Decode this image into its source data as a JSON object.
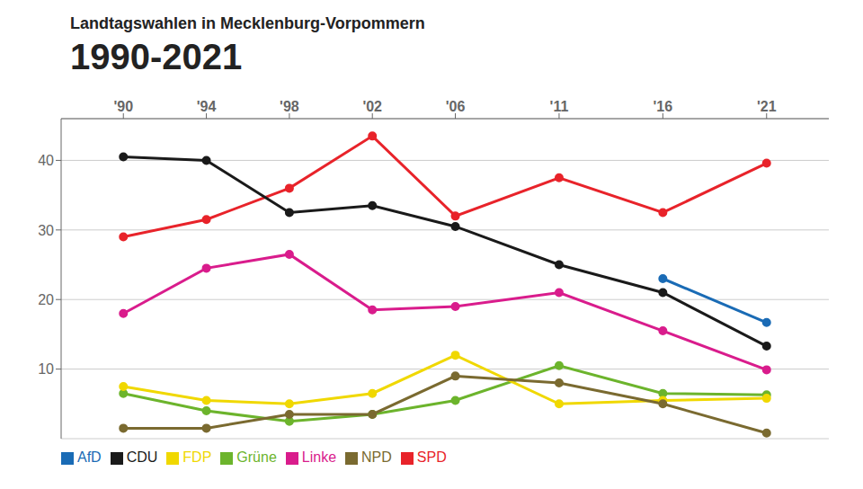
{
  "chart_data": {
    "type": "line",
    "title": "Landtagswahlen in Mecklenburg-Vorpommern",
    "subtitle": "1990-2021",
    "x": [
      1990,
      1994,
      1998,
      2002,
      2006,
      2011,
      2016,
      2021
    ],
    "xlim": [
      1987,
      2024
    ],
    "xticks": [
      {
        "value": 1990,
        "label": "'90"
      },
      {
        "value": 1994,
        "label": "'94"
      },
      {
        "value": 1998,
        "label": "'98"
      },
      {
        "value": 2002,
        "label": "'02"
      },
      {
        "value": 2006,
        "label": "'06"
      },
      {
        "value": 2011,
        "label": "'11"
      },
      {
        "value": 2016,
        "label": "'16"
      },
      {
        "value": 2021,
        "label": "'21"
      }
    ],
    "ylim": [
      0,
      46
    ],
    "yticks": [
      10,
      20,
      30,
      40
    ],
    "grid": true,
    "legend": "lower left",
    "marker": "circle",
    "series": [
      {
        "name": "SPD",
        "color": "#e8232a",
        "values": [
          29.0,
          31.5,
          36.0,
          43.5,
          32.0,
          37.5,
          32.5,
          39.6
        ]
      },
      {
        "name": "AfD",
        "color": "#1a6bb5",
        "values": [
          null,
          null,
          null,
          null,
          null,
          null,
          23.0,
          16.7
        ]
      },
      {
        "name": "CDU",
        "color": "#1a1a1a",
        "values": [
          40.5,
          40.0,
          32.5,
          33.5,
          30.5,
          25.0,
          21.0,
          13.3
        ]
      },
      {
        "name": "Linke",
        "color": "#d91c8c",
        "values": [
          18.0,
          24.5,
          26.5,
          18.5,
          19.0,
          21.0,
          15.5,
          9.9
        ]
      },
      {
        "name": "Grüne",
        "color": "#6cb42c",
        "values": [
          6.5,
          4.0,
          2.5,
          3.5,
          5.5,
          10.5,
          6.5,
          6.3
        ]
      },
      {
        "name": "FDP",
        "color": "#f0d800",
        "values": [
          7.5,
          5.5,
          5.0,
          6.5,
          12.0,
          5.0,
          5.5,
          5.8
        ]
      },
      {
        "name": "NPD",
        "color": "#7a6a30",
        "values": [
          1.5,
          1.5,
          3.5,
          3.5,
          9.0,
          8.0,
          5.0,
          0.8
        ]
      }
    ]
  }
}
